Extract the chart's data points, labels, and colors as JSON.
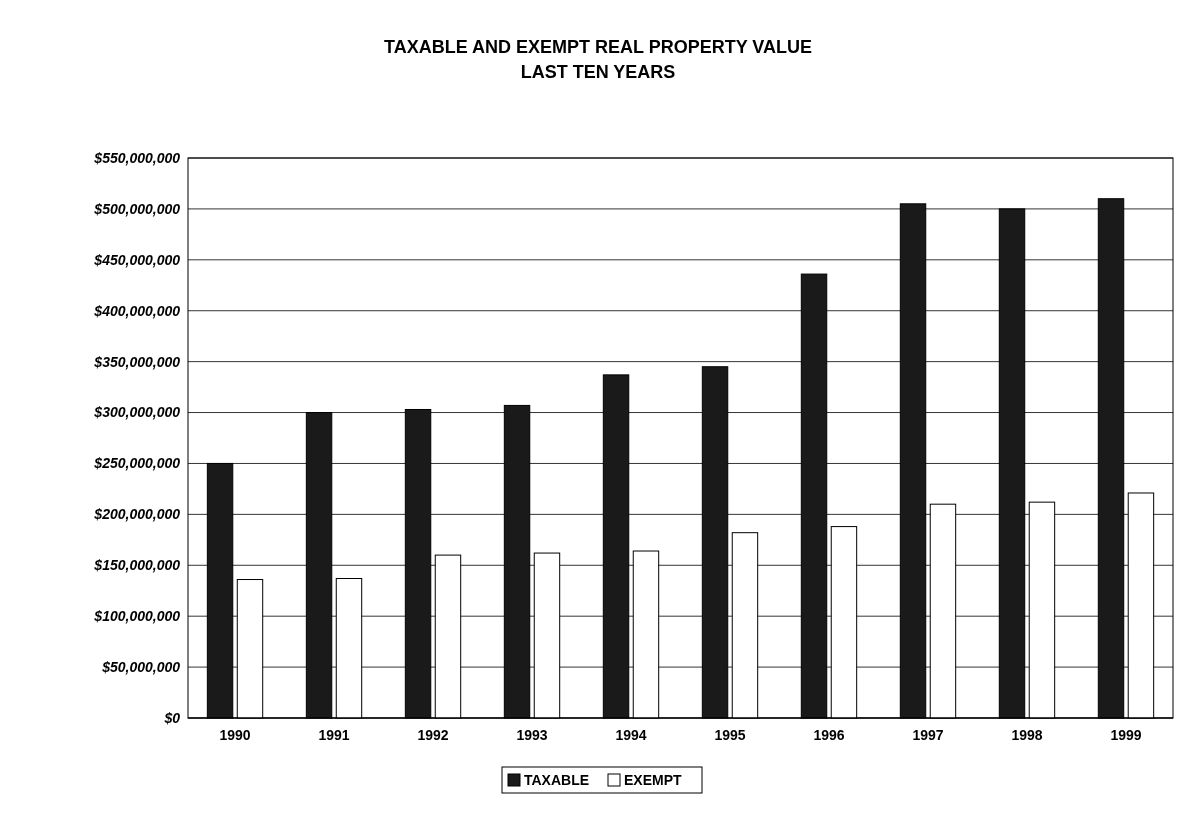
{
  "chart_data": {
    "type": "bar",
    "title": "TAXABLE AND EXEMPT REAL PROPERTY VALUE\nLAST TEN YEARS",
    "categories": [
      "1990",
      "1991",
      "1992",
      "1993",
      "1994",
      "1995",
      "1996",
      "1997",
      "1998",
      "1999"
    ],
    "series": [
      {
        "name": "TAXABLE",
        "color": "#1a1a1a",
        "values": [
          250000000,
          300000000,
          303000000,
          307000000,
          337000000,
          345000000,
          436000000,
          505000000,
          500000000,
          510000000
        ]
      },
      {
        "name": "EXEMPT",
        "color": "#ffffff",
        "values": [
          136000000,
          137000000,
          160000000,
          162000000,
          164000000,
          182000000,
          188000000,
          210000000,
          212000000,
          221000000
        ]
      }
    ],
    "ylim": [
      0,
      550000000
    ],
    "yticks": [
      {
        "value": 0,
        "label": "$0"
      },
      {
        "value": 50000000,
        "label": "$50,000,000"
      },
      {
        "value": 100000000,
        "label": "$100,000,000"
      },
      {
        "value": 150000000,
        "label": "$150,000,000"
      },
      {
        "value": 200000000,
        "label": "$200,000,000"
      },
      {
        "value": 250000000,
        "label": "$250,000,000"
      },
      {
        "value": 300000000,
        "label": "$300,000,000"
      },
      {
        "value": 350000000,
        "label": "$350,000,000"
      },
      {
        "value": 400000000,
        "label": "$400,000,000"
      },
      {
        "value": 450000000,
        "label": "$450,000,000"
      },
      {
        "value": 500000000,
        "label": "$500,000,000"
      },
      {
        "value": 550000000,
        "label": "$550,000,000"
      }
    ],
    "grid": "y",
    "legend": "bottom"
  }
}
